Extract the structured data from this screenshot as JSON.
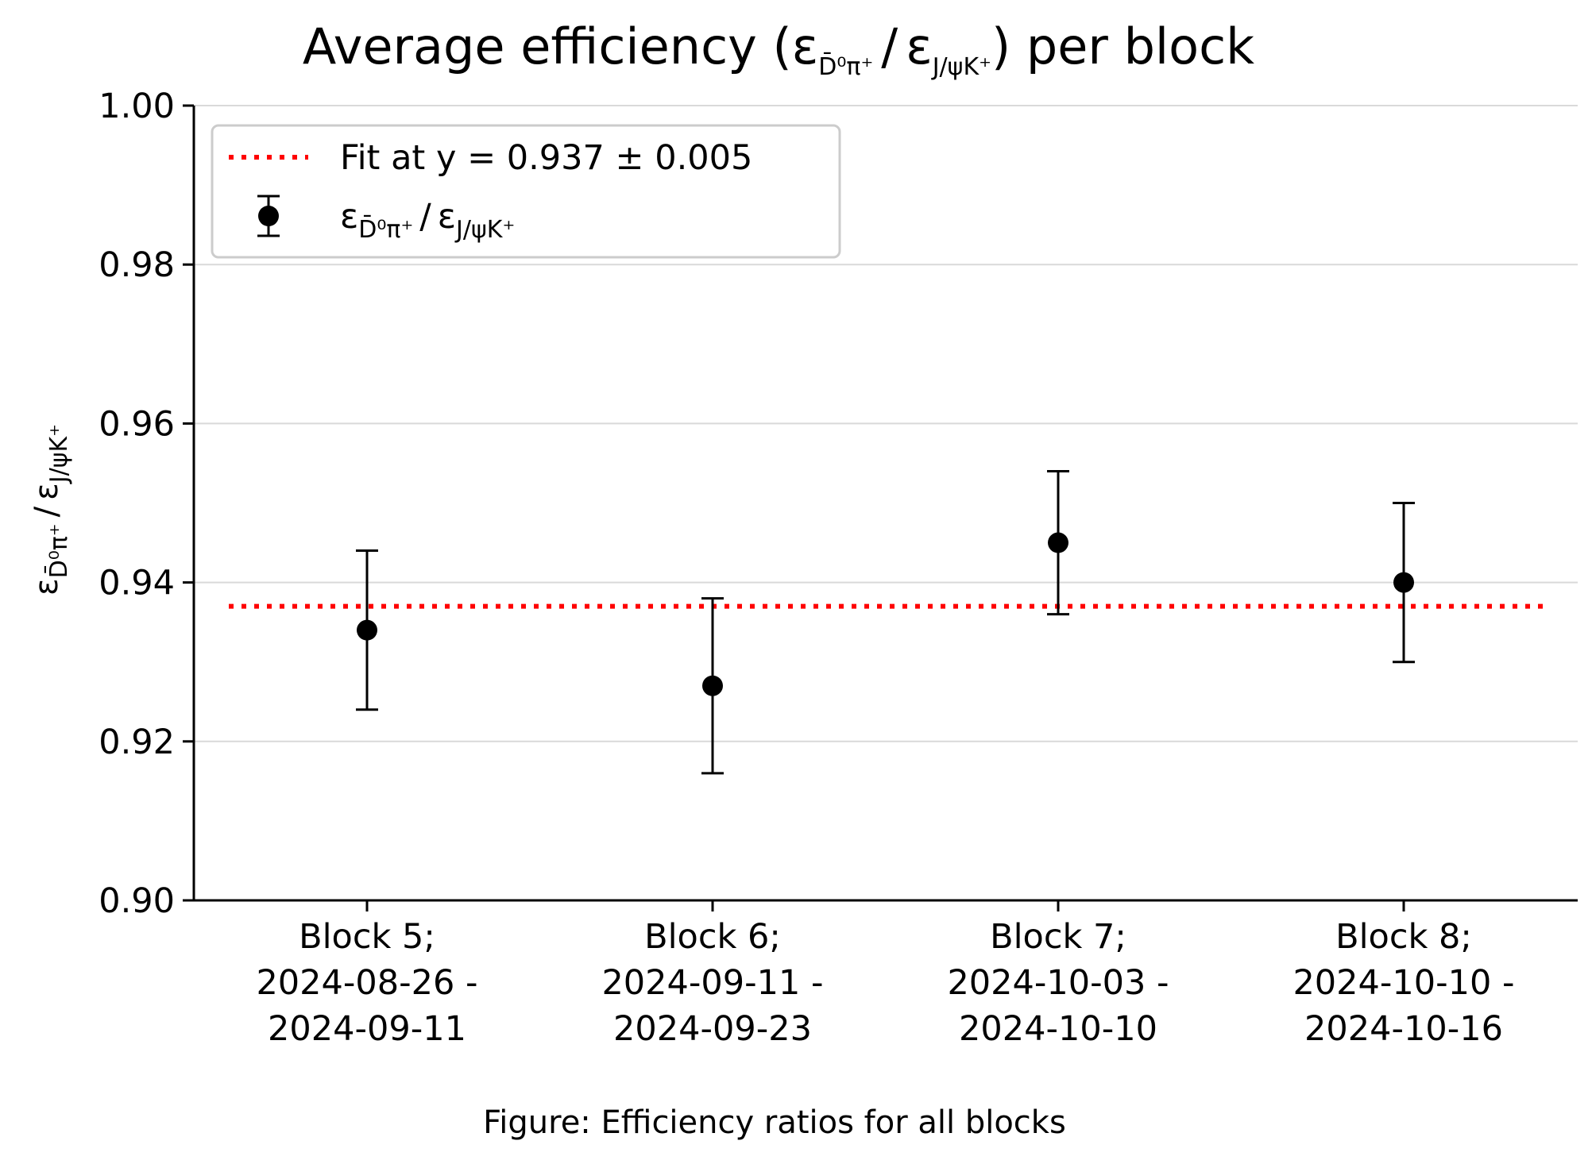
{
  "chart_data": {
    "type": "scatter",
    "title": {
      "prefix": "Average efficiency (",
      "suffix": ") per block"
    },
    "ratio_symbol": {
      "numerator_base": "ε",
      "numerator_sub": "D̄⁰π⁺",
      "separator": "/",
      "denominator_base": "ε",
      "denominator_sub": "J/ψK⁺"
    },
    "categories": [
      [
        "Block 5;",
        "2024-08-26 -",
        "2024-09-11"
      ],
      [
        "Block 6;",
        "2024-09-11 -",
        "2024-09-23"
      ],
      [
        "Block 7;",
        "2024-10-03 -",
        "2024-10-10"
      ],
      [
        "Block 8;",
        "2024-10-10 -",
        "2024-10-16"
      ]
    ],
    "series": [
      {
        "values": [
          0.934,
          0.927,
          0.945,
          0.94
        ],
        "errors": [
          0.01,
          0.011,
          0.009,
          0.01
        ],
        "color": "#000000"
      }
    ],
    "fit": {
      "value": 0.937,
      "label": "Fit at y = 0.937 ± 0.005",
      "color": "#ff0000",
      "style": "dotted"
    },
    "ylim": [
      0.9,
      1.0
    ],
    "yticks": [
      "0.90",
      "0.92",
      "0.94",
      "0.96",
      "0.98",
      "1.00"
    ],
    "grid": "horizontal",
    "legend_position": "top-left",
    "caption": "Figure: Efficiency ratios for all blocks"
  }
}
